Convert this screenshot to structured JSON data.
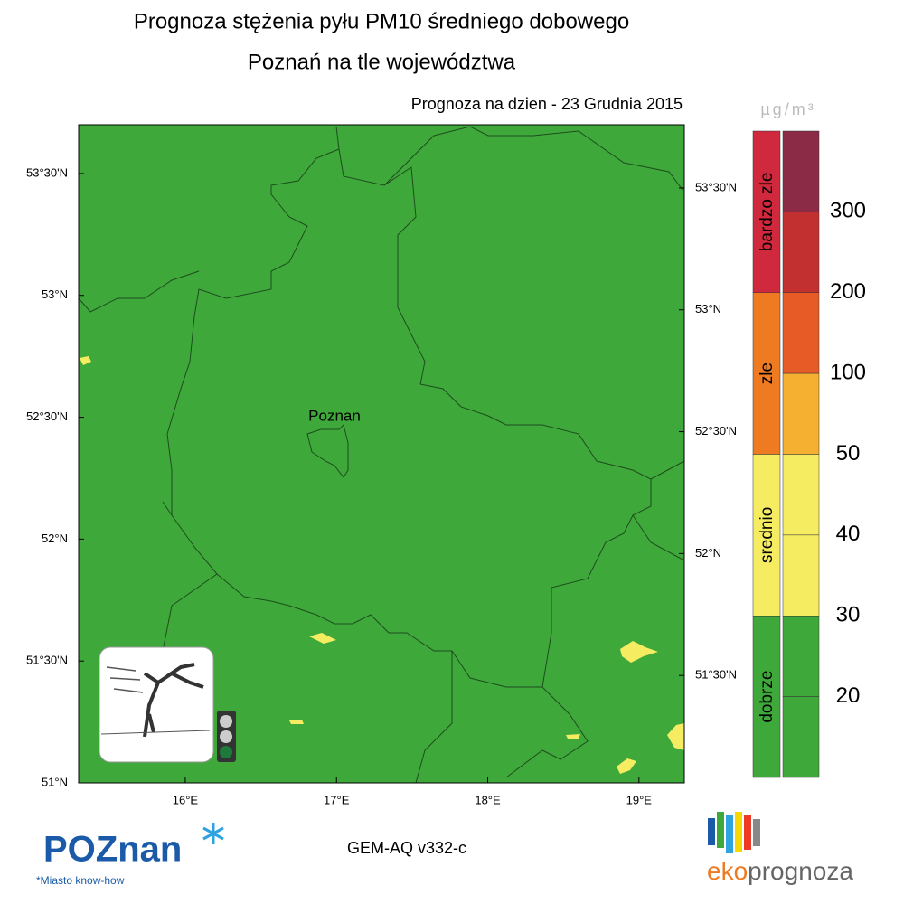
{
  "chart_data": {
    "type": "map",
    "title": "Prognoza stężenia pyłu PM10 średniego dobowego",
    "subtitle": "Poznań na tle województwa",
    "forecast_date": "Prognoza na dzien -  23 Grudnia 2015",
    "unit": "µg/m³",
    "city_label": "Poznan",
    "model": "GEM-AQ v332-c",
    "xlim": [
      15.295,
      19.3
    ],
    "ylim": [
      51,
      53.7
    ],
    "xticks": [
      {
        "value": 16,
        "label": "16°E"
      },
      {
        "value": 17,
        "label": "17°E"
      },
      {
        "value": 18,
        "label": "18°E"
      },
      {
        "value": 19,
        "label": "19°E"
      }
    ],
    "yticks": [
      {
        "value": 51,
        "label": "51°N"
      },
      {
        "value": 51.5,
        "label": "51°30'N"
      },
      {
        "value": 52,
        "label": "52°N"
      },
      {
        "value": 52.5,
        "label": "52°30'N"
      },
      {
        "value": 53,
        "label": "53°N"
      },
      {
        "value": 53.5,
        "label": "53°30'N"
      }
    ],
    "y2ticks": [
      {
        "value": 51.5,
        "label": "51°30'N"
      },
      {
        "value": 52,
        "label": "52°N"
      },
      {
        "value": 52.5,
        "label": "52°30'N"
      },
      {
        "value": 53,
        "label": "53°N"
      },
      {
        "value": 53.5,
        "label": "53°30'N"
      }
    ],
    "categories": [
      {
        "name": "bardzo zle",
        "color": "#d0283c"
      },
      {
        "name": "zle",
        "color": "#ee7a22"
      },
      {
        "name": "srednio",
        "color": "#f6ec62"
      },
      {
        "name": "dobrze",
        "color": "#3fa83a"
      }
    ],
    "scale_colors": [
      "#8b2b45",
      "#c2302f",
      "#e75c26",
      "#f5b031",
      "#f6ec62",
      "#f6ec62",
      "#3fa83a",
      "#3fa83a"
    ],
    "levels": [
      300,
      200,
      100,
      50,
      40,
      30,
      20
    ],
    "background_color": "#3fa83a"
  },
  "logos": {
    "poznan": "POZnan",
    "poznan_tagline": "*Miasto know-how",
    "eko": "eko",
    "prognoza": "prognoza"
  }
}
